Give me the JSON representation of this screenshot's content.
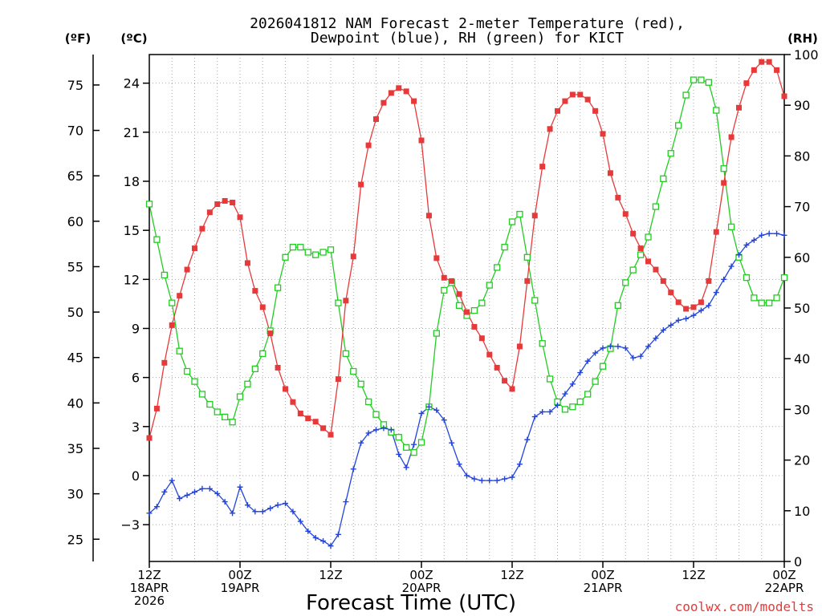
{
  "chart_data": {
    "type": "line",
    "title": "2026041812 NAM Forecast 2-meter Temperature (red),",
    "subtitle": "Dewpoint (blue), RH (green) for KICT",
    "xlabel": "Forecast Time (UTC)",
    "credit": "coolwx.com/modelts",
    "unit_labels": {
      "fahrenheit": "(ºF)",
      "celsius": "(ºC)",
      "rh": "(RH)"
    },
    "x_range_hours": [
      0,
      84
    ],
    "x_ticks": [
      {
        "hour": 0,
        "lines": [
          "12Z",
          "18APR",
          "2026"
        ]
      },
      {
        "hour": 12,
        "lines": [
          "00Z",
          "19APR"
        ]
      },
      {
        "hour": 24,
        "lines": [
          "12Z"
        ]
      },
      {
        "hour": 36,
        "lines": [
          "00Z",
          "20APR"
        ]
      },
      {
        "hour": 48,
        "lines": [
          "12Z"
        ]
      },
      {
        "hour": 60,
        "lines": [
          "00Z",
          "21APR"
        ]
      },
      {
        "hour": 72,
        "lines": [
          "12Z"
        ]
      },
      {
        "hour": 84,
        "lines": [
          "00Z",
          "22APR"
        ]
      }
    ],
    "celsius_axis": {
      "range": [
        -5.25,
        25.75
      ],
      "ticks": [
        -3,
        0,
        3,
        6,
        9,
        12,
        15,
        18,
        21,
        24
      ]
    },
    "fahrenheit_ticks": [
      25,
      30,
      35,
      40,
      45,
      50,
      55,
      60,
      65,
      70,
      75
    ],
    "rh_axis": {
      "range": [
        0,
        100
      ],
      "ticks": [
        0,
        10,
        20,
        30,
        40,
        50,
        60,
        70,
        80,
        90,
        100
      ]
    },
    "colors": {
      "temperature": "#e8393a",
      "dewpoint": "#2244dd",
      "rh": "#22cc22",
      "grid": "#aaaaaa"
    },
    "series": [
      {
        "name": "Temperature",
        "unit": "C",
        "hours": [
          0,
          1,
          2,
          3,
          4,
          5,
          6,
          7,
          8,
          9,
          10,
          11,
          12,
          13,
          14,
          15,
          16,
          17,
          18,
          19,
          20,
          21,
          22,
          23,
          24,
          25,
          26,
          27,
          28,
          29,
          30,
          31,
          32,
          33,
          34,
          35,
          36,
          37,
          38,
          39,
          40,
          41,
          42,
          43,
          44,
          45,
          46,
          47,
          48,
          49,
          50,
          51,
          52,
          53,
          54,
          55,
          56,
          57,
          58,
          59,
          60,
          61,
          62,
          63,
          64,
          65,
          66,
          67,
          68,
          69,
          70,
          71,
          72,
          73,
          74,
          75,
          76,
          77,
          78,
          79,
          80,
          81,
          82,
          83,
          84
        ],
        "values": [
          2.3,
          4.1,
          6.9,
          9.2,
          11.0,
          12.6,
          13.9,
          15.1,
          16.1,
          16.6,
          16.8,
          16.7,
          15.8,
          13.0,
          11.3,
          10.3,
          8.7,
          6.6,
          5.3,
          4.5,
          3.8,
          3.5,
          3.3,
          2.9,
          2.5,
          5.9,
          10.7,
          13.4,
          17.8,
          20.2,
          21.8,
          22.8,
          23.4,
          23.7,
          23.5,
          22.9,
          20.5,
          15.9,
          13.3,
          12.1,
          11.9,
          11.1,
          10.0,
          9.1,
          8.4,
          7.4,
          6.6,
          5.8,
          5.3,
          7.9,
          11.9,
          15.9,
          18.9,
          21.2,
          22.3,
          22.9,
          23.3,
          23.3,
          23.0,
          22.3,
          20.9,
          18.5,
          17.0,
          16.0,
          14.8,
          13.9,
          13.1,
          12.6,
          11.9,
          11.2,
          10.6,
          10.2,
          10.3,
          10.6,
          11.9,
          14.9,
          17.9,
          20.7,
          22.5,
          24.0,
          24.8,
          25.3,
          25.3,
          24.8,
          23.2
        ]
      },
      {
        "name": "Dewpoint",
        "unit": "C",
        "hours": [
          0,
          1,
          2,
          3,
          4,
          5,
          6,
          7,
          8,
          9,
          10,
          11,
          12,
          13,
          14,
          15,
          16,
          17,
          18,
          19,
          20,
          21,
          22,
          23,
          24,
          25,
          26,
          27,
          28,
          29,
          30,
          31,
          32,
          33,
          34,
          35,
          36,
          37,
          38,
          39,
          40,
          41,
          42,
          43,
          44,
          45,
          46,
          47,
          48,
          49,
          50,
          51,
          52,
          53,
          54,
          55,
          56,
          57,
          58,
          59,
          60,
          61,
          62,
          63,
          64,
          65,
          66,
          67,
          68,
          69,
          70,
          71,
          72,
          73,
          74,
          75,
          76,
          77,
          78,
          79,
          80,
          81,
          82,
          83,
          84
        ],
        "values": [
          -2.3,
          -1.9,
          -1.0,
          -0.3,
          -1.4,
          -1.2,
          -1.0,
          -0.8,
          -0.8,
          -1.1,
          -1.6,
          -2.3,
          -0.7,
          -1.8,
          -2.2,
          -2.2,
          -2.0,
          -1.8,
          -1.7,
          -2.2,
          -2.8,
          -3.4,
          -3.8,
          -4.0,
          -4.3,
          -3.6,
          -1.6,
          0.4,
          2.0,
          2.6,
          2.8,
          2.9,
          2.8,
          1.3,
          0.5,
          1.9,
          3.8,
          4.2,
          4.0,
          3.4,
          2.0,
          0.7,
          0.0,
          -0.2,
          -0.3,
          -0.3,
          -0.3,
          -0.2,
          -0.1,
          0.7,
          2.2,
          3.6,
          3.9,
          3.9,
          4.3,
          5.0,
          5.6,
          6.3,
          7.0,
          7.5,
          7.8,
          7.9,
          7.9,
          7.8,
          7.2,
          7.3,
          7.9,
          8.4,
          8.9,
          9.2,
          9.5,
          9.6,
          9.8,
          10.1,
          10.4,
          11.2,
          12.0,
          12.8,
          13.5,
          14.1,
          14.4,
          14.7,
          14.8,
          14.8,
          14.7
        ]
      },
      {
        "name": "RH",
        "unit": "%",
        "hours": [
          0,
          1,
          2,
          3,
          4,
          5,
          6,
          7,
          8,
          9,
          10,
          11,
          12,
          13,
          14,
          15,
          16,
          17,
          18,
          19,
          20,
          21,
          22,
          23,
          24,
          25,
          26,
          27,
          28,
          29,
          30,
          31,
          32,
          33,
          34,
          35,
          36,
          37,
          38,
          39,
          40,
          41,
          42,
          43,
          44,
          45,
          46,
          47,
          48,
          49,
          50,
          51,
          52,
          53,
          54,
          55,
          56,
          57,
          58,
          59,
          60,
          61,
          62,
          63,
          64,
          65,
          66,
          67,
          68,
          69,
          70,
          71,
          72,
          73,
          74,
          75,
          76,
          77,
          78,
          79,
          80,
          81,
          82,
          83,
          84
        ],
        "values": [
          70.5,
          63.5,
          56.5,
          51.0,
          41.5,
          37.5,
          35.5,
          33.0,
          31.0,
          29.5,
          28.5,
          27.5,
          32.5,
          35.0,
          38.0,
          41.0,
          45.5,
          54.0,
          60.0,
          62.0,
          62.0,
          61.0,
          60.5,
          61.0,
          61.5,
          51.0,
          41.0,
          37.5,
          35.0,
          31.5,
          29.0,
          27.0,
          25.5,
          24.5,
          22.5,
          21.5,
          23.5,
          30.5,
          45.0,
          53.5,
          55.0,
          50.5,
          48.5,
          49.5,
          51.0,
          54.5,
          58.0,
          62.0,
          67.0,
          68.5,
          60.0,
          51.5,
          43.0,
          36.0,
          31.5,
          30.0,
          30.5,
          31.5,
          33.0,
          35.5,
          38.5,
          42.0,
          50.5,
          55.0,
          57.5,
          60.5,
          64.0,
          70.0,
          75.5,
          80.5,
          86.0,
          92.0,
          95.0,
          95.0,
          94.5,
          89.0,
          77.5,
          66.0,
          60.0,
          56.0,
          52.0,
          51.0,
          51.0,
          52.0,
          56.0
        ]
      }
    ]
  }
}
